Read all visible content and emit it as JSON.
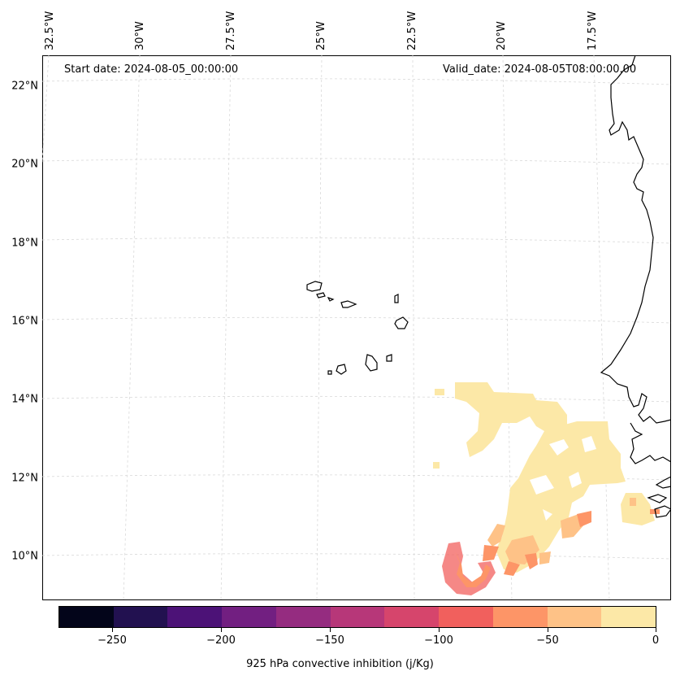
{
  "map": {
    "start_date": "Start date: 2024-08-05_00:00:00",
    "valid_date": "Valid_date: 2024-08-05T08:00:00.00",
    "lat_labels": [
      "22°N",
      "20°N",
      "18°N",
      "16°N",
      "14°N",
      "12°N",
      "10°N"
    ],
    "lon_labels": [
      "32.5°W",
      "30°W",
      "27.5°W",
      "25°W",
      "22.5°W",
      "20°W",
      "17.5°W"
    ],
    "field": "925 hPa convective inhibition"
  },
  "colorbar": {
    "label": "925 hPa convective inhibition (j/Kg)",
    "tick_labels": [
      "−250",
      "−200",
      "−150",
      "−100",
      "−50",
      "0"
    ],
    "range": [
      -275,
      0
    ],
    "level_step": 25,
    "colors": [
      "#03051a",
      "#221150",
      "#4c1277",
      "#721f81",
      "#952c80",
      "#b73779",
      "#d6456c",
      "#f1605d",
      "#fd9567",
      "#fec287",
      "#fce8a7"
    ]
  }
}
